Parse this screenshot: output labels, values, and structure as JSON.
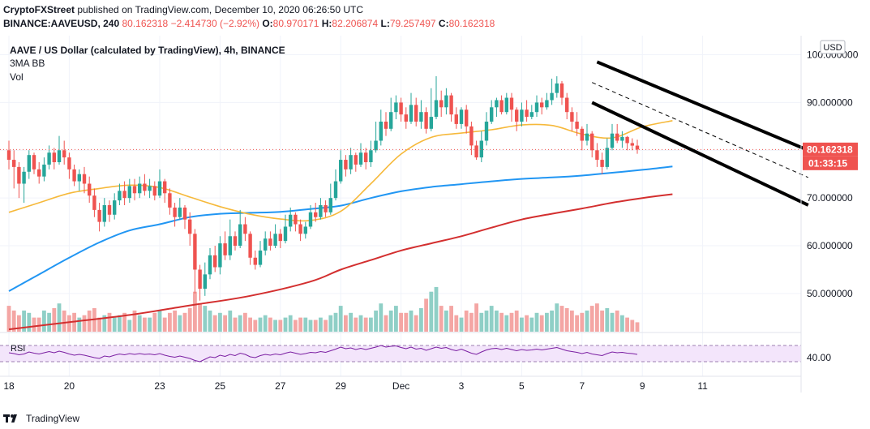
{
  "header": {
    "publisher": "CryptoFXStreet",
    "published_text": "published on TradingView.com, December 10, 2020 06:26:50 UTC",
    "symbol_line": "BINANCE:AAVEUSD, 240",
    "price": "80.162318",
    "change": "−2.414730 (−2.92%)",
    "open_label": "O:",
    "open": "80.970171",
    "high_label": "H:",
    "high": "82.206874",
    "low_label": "L:",
    "low": "79.257497",
    "close_label": "C:",
    "close": "80.162318"
  },
  "legend": {
    "title": "AAVE / US Dollar (calculated by TradingView), 4h, BINANCE",
    "indicator1": "3MA BB",
    "indicator2": "Vol"
  },
  "currency_button": "USD",
  "rsi_label": "RSI",
  "last_price_label": "80.162318",
  "countdown_label": "01:33:15",
  "footer": {
    "brand": "TradingView"
  },
  "colors": {
    "up": "#26a69a",
    "down": "#ef5350",
    "up_vol": "#8fcfc6",
    "down_vol": "#f4a6a4",
    "ma_yellow": "#f6b93b",
    "ma_blue": "#2196f3",
    "ma_red": "#d32f2f",
    "rsi_line": "#7b1fa2",
    "rsi_band": "#f3e5fb"
  },
  "chart_data": {
    "type": "candlestick",
    "title": "AAVE / US Dollar (calculated by TradingView), 4h, BINANCE",
    "ylim": [
      42,
      104
    ],
    "y_ticks": [
      "100.000000",
      "90.000000",
      "80.000000",
      "70.000000",
      "60.000000",
      "50.000000"
    ],
    "y_tick_values": [
      100,
      90,
      80,
      70,
      60,
      50
    ],
    "x_tick_labels": [
      "18",
      "20",
      "23",
      "25",
      "27",
      "29",
      "Dec",
      "3",
      "5",
      "7",
      "9",
      "11"
    ],
    "x_tick_index": [
      0,
      12,
      30,
      42,
      54,
      66,
      78,
      90,
      102,
      114,
      126,
      138
    ],
    "rsi_ticks": [
      "40.00"
    ],
    "rsi_tick_values": [
      40
    ],
    "rsi_band": [
      30,
      70
    ],
    "candles": [
      [
        80.0,
        78.0,
        82.0,
        76.0
      ],
      [
        78.0,
        76.5,
        80.0,
        72.0
      ],
      [
        76.5,
        73.0,
        77.5,
        70.0
      ],
      [
        73.0,
        75.5,
        76.5,
        69.0
      ],
      [
        75.5,
        79.0,
        80.0,
        74.0
      ],
      [
        79.0,
        76.0,
        79.5,
        75.0
      ],
      [
        76.0,
        74.5,
        77.5,
        73.0
      ],
      [
        74.5,
        77.0,
        78.5,
        73.5
      ],
      [
        77.0,
        79.5,
        81.0,
        76.0
      ],
      [
        79.5,
        77.5,
        80.5,
        76.0
      ],
      [
        77.5,
        80.0,
        83.0,
        77.0
      ],
      [
        80.0,
        78.5,
        82.0,
        77.0
      ],
      [
        78.5,
        76.0,
        79.5,
        74.0
      ],
      [
        76.0,
        73.5,
        77.0,
        72.5
      ],
      [
        73.5,
        75.0,
        76.0,
        71.5
      ],
      [
        75.0,
        73.0,
        76.5,
        71.0
      ],
      [
        73.0,
        70.5,
        74.5,
        69.0
      ],
      [
        70.5,
        67.5,
        72.0,
        66.0
      ],
      [
        67.5,
        65.0,
        69.0,
        63.0
      ],
      [
        65.0,
        68.5,
        70.0,
        64.0
      ],
      [
        68.5,
        66.5,
        69.5,
        65.0
      ],
      [
        66.5,
        69.5,
        71.0,
        65.5
      ],
      [
        69.5,
        71.5,
        73.0,
        68.5
      ],
      [
        71.5,
        70.0,
        73.5,
        68.5
      ],
      [
        70.0,
        72.5,
        74.0,
        69.0
      ],
      [
        72.5,
        71.0,
        74.0,
        69.5
      ],
      [
        71.0,
        73.0,
        74.5,
        70.0
      ],
      [
        73.0,
        71.5,
        75.0,
        70.5
      ],
      [
        71.5,
        72.5,
        74.0,
        70.0
      ],
      [
        72.5,
        70.5,
        73.5,
        69.5
      ],
      [
        70.5,
        73.5,
        76.0,
        70.0
      ],
      [
        73.5,
        71.0,
        74.0,
        69.0
      ],
      [
        71.0,
        68.0,
        72.0,
        66.5
      ],
      [
        68.0,
        66.0,
        69.0,
        64.0
      ],
      [
        66.0,
        68.0,
        70.0,
        65.5
      ],
      [
        68.0,
        65.5,
        68.5,
        63.5
      ],
      [
        65.5,
        62.5,
        67.0,
        60.0
      ],
      [
        62.5,
        55.0,
        63.5,
        50.0
      ],
      [
        55.0,
        51.0,
        56.0,
        48.5
      ],
      [
        51.0,
        54.0,
        56.5,
        49.5
      ],
      [
        54.0,
        58.0,
        59.5,
        53.0
      ],
      [
        58.0,
        55.5,
        60.0,
        54.5
      ],
      [
        55.5,
        60.5,
        62.0,
        54.0
      ],
      [
        60.5,
        58.0,
        63.0,
        57.0
      ],
      [
        58.0,
        62.0,
        65.5,
        57.0
      ],
      [
        62.0,
        60.0,
        63.0,
        59.0
      ],
      [
        60.0,
        64.5,
        67.5,
        59.5
      ],
      [
        64.5,
        62.5,
        66.0,
        61.0
      ],
      [
        62.5,
        57.5,
        63.0,
        56.0
      ],
      [
        57.5,
        56.0,
        59.0,
        55.0
      ],
      [
        56.0,
        59.0,
        61.0,
        55.5
      ],
      [
        59.0,
        61.5,
        63.0,
        58.0
      ],
      [
        61.5,
        60.0,
        63.0,
        59.0
      ],
      [
        60.0,
        62.5,
        64.5,
        59.5
      ],
      [
        62.5,
        61.0,
        63.5,
        59.5
      ],
      [
        61.0,
        64.0,
        66.5,
        60.5
      ],
      [
        64.0,
        66.5,
        68.0,
        63.0
      ],
      [
        66.5,
        64.5,
        67.0,
        63.0
      ],
      [
        64.5,
        62.5,
        65.5,
        61.0
      ],
      [
        62.5,
        64.0,
        65.0,
        61.5
      ],
      [
        64.0,
        67.0,
        68.5,
        63.5
      ],
      [
        67.0,
        66.0,
        69.0,
        65.0
      ],
      [
        66.0,
        68.5,
        70.0,
        65.5
      ],
      [
        68.5,
        67.0,
        69.5,
        66.0
      ],
      [
        67.0,
        70.0,
        73.0,
        66.5
      ],
      [
        70.0,
        73.5,
        76.0,
        69.5
      ],
      [
        73.5,
        78.0,
        80.0,
        73.0
      ],
      [
        78.0,
        76.0,
        79.0,
        74.5
      ],
      [
        76.0,
        79.0,
        80.5,
        75.0
      ],
      [
        79.0,
        77.0,
        79.5,
        75.5
      ],
      [
        77.0,
        79.5,
        81.5,
        76.5
      ],
      [
        79.5,
        77.5,
        80.5,
        76.0
      ],
      [
        77.5,
        80.0,
        82.0,
        76.5
      ],
      [
        80.0,
        82.0,
        86.0,
        79.5
      ],
      [
        82.0,
        86.0,
        88.5,
        81.0
      ],
      [
        86.0,
        84.5,
        88.0,
        83.0
      ],
      [
        84.5,
        88.0,
        91.0,
        84.0
      ],
      [
        88.0,
        90.0,
        91.5,
        86.5
      ],
      [
        90.0,
        87.5,
        91.0,
        86.0
      ],
      [
        87.5,
        86.0,
        89.0,
        84.5
      ],
      [
        86.0,
        89.5,
        92.0,
        85.5
      ],
      [
        89.5,
        86.0,
        91.0,
        85.0
      ],
      [
        86.0,
        88.0,
        90.5,
        84.5
      ],
      [
        88.0,
        84.5,
        89.0,
        83.5
      ],
      [
        84.5,
        87.0,
        93.0,
        84.0
      ],
      [
        87.0,
        90.5,
        95.5,
        86.5
      ],
      [
        90.5,
        89.0,
        92.5,
        87.0
      ],
      [
        89.0,
        91.5,
        93.0,
        87.5
      ],
      [
        91.5,
        87.5,
        92.0,
        86.0
      ],
      [
        87.5,
        85.5,
        89.0,
        84.5
      ],
      [
        85.5,
        88.5,
        89.0,
        84.5
      ],
      [
        88.5,
        85.0,
        89.5,
        83.5
      ],
      [
        85.0,
        81.0,
        86.0,
        79.0
      ],
      [
        81.0,
        78.5,
        82.0,
        78.0
      ],
      [
        78.5,
        82.0,
        84.0,
        77.5
      ],
      [
        82.0,
        86.0,
        88.0,
        81.0
      ],
      [
        86.0,
        89.0,
        90.5,
        85.5
      ],
      [
        89.0,
        90.5,
        91.0,
        87.0
      ],
      [
        90.5,
        88.0,
        91.5,
        87.5
      ],
      [
        88.0,
        91.0,
        92.0,
        87.5
      ],
      [
        91.0,
        88.5,
        92.0,
        86.0
      ],
      [
        88.5,
        86.0,
        89.0,
        84.0
      ],
      [
        86.0,
        88.5,
        90.0,
        85.0
      ],
      [
        88.5,
        87.0,
        90.5,
        86.0
      ],
      [
        87.0,
        88.0,
        89.5,
        86.5
      ],
      [
        88.0,
        90.0,
        91.5,
        87.0
      ],
      [
        90.0,
        89.0,
        91.0,
        87.5
      ],
      [
        89.0,
        90.5,
        92.0,
        88.5
      ],
      [
        90.5,
        92.0,
        95.0,
        89.5
      ],
      [
        92.0,
        94.0,
        95.5,
        91.0
      ],
      [
        94.0,
        91.0,
        94.5,
        89.5
      ],
      [
        91.0,
        88.0,
        92.0,
        86.5
      ],
      [
        88.0,
        86.0,
        89.0,
        84.0
      ],
      [
        86.0,
        84.5,
        88.0,
        83.0
      ],
      [
        84.5,
        82.0,
        85.0,
        80.0
      ],
      [
        82.0,
        83.5,
        85.5,
        81.0
      ],
      [
        83.5,
        80.0,
        84.0,
        78.5
      ],
      [
        80.0,
        78.0,
        81.5,
        76.5
      ],
      [
        78.0,
        76.5,
        79.5,
        75.0
      ],
      [
        76.5,
        80.5,
        82.5,
        76.0
      ],
      [
        80.5,
        83.5,
        85.5,
        80.0
      ],
      [
        83.5,
        82.0,
        85.5,
        81.5
      ],
      [
        82.0,
        82.8,
        84.0,
        80.5
      ],
      [
        82.8,
        81.5,
        83.0,
        80.0
      ],
      [
        81.5,
        80.97,
        82.5,
        80.0
      ],
      [
        80.97,
        80.16,
        82.21,
        79.26
      ]
    ],
    "volume": [
      0.55,
      0.45,
      0.35,
      0.45,
      0.4,
      0.3,
      0.3,
      0.45,
      0.4,
      0.5,
      0.6,
      0.45,
      0.35,
      0.4,
      0.3,
      0.35,
      0.45,
      0.5,
      0.3,
      0.35,
      0.4,
      0.3,
      0.35,
      0.4,
      0.25,
      0.45,
      0.35,
      0.3,
      0.3,
      0.4,
      0.45,
      0.3,
      0.4,
      0.45,
      0.35,
      0.4,
      0.5,
      0.85,
      0.6,
      0.55,
      0.45,
      0.35,
      0.4,
      0.35,
      0.45,
      0.3,
      0.35,
      0.4,
      0.3,
      0.25,
      0.3,
      0.35,
      0.3,
      0.25,
      0.25,
      0.3,
      0.35,
      0.25,
      0.3,
      0.3,
      0.25,
      0.25,
      0.3,
      0.25,
      0.35,
      0.4,
      0.55,
      0.35,
      0.4,
      0.3,
      0.35,
      0.3,
      0.3,
      0.45,
      0.6,
      0.35,
      0.45,
      0.55,
      0.4,
      0.4,
      0.45,
      0.35,
      0.5,
      0.7,
      0.85,
      0.95,
      0.55,
      0.45,
      0.55,
      0.35,
      0.3,
      0.45,
      0.4,
      0.6,
      0.4,
      0.45,
      0.55,
      0.45,
      0.4,
      0.35,
      0.4,
      0.45,
      0.3,
      0.35,
      0.3,
      0.4,
      0.35,
      0.4,
      0.45,
      0.6,
      0.55,
      0.5,
      0.45,
      0.35,
      0.4,
      0.45,
      0.55,
      0.6,
      0.45,
      0.5,
      0.4,
      0.45,
      0.35,
      0.3,
      0.25,
      0.2
    ],
    "rsi": [
      52,
      50,
      47,
      49,
      54,
      51,
      49,
      52,
      55,
      52,
      56,
      53,
      49,
      46,
      48,
      46,
      43,
      40,
      38,
      44,
      42,
      46,
      49,
      47,
      50,
      48,
      50,
      48,
      49,
      47,
      50,
      46,
      43,
      41,
      44,
      41,
      38,
      33,
      30,
      36,
      42,
      40,
      46,
      43,
      48,
      45,
      51,
      48,
      42,
      40,
      45,
      48,
      46,
      49,
      47,
      51,
      54,
      51,
      48,
      50,
      53,
      52,
      55,
      53,
      57,
      61,
      66,
      62,
      64,
      60,
      63,
      60,
      63,
      66,
      70,
      66,
      68,
      69,
      65,
      62,
      66,
      61,
      63,
      58,
      62,
      66,
      63,
      65,
      60,
      57,
      61,
      56,
      51,
      48,
      54,
      59,
      62,
      63,
      60,
      63,
      60,
      57,
      60,
      58,
      59,
      61,
      59,
      61,
      63,
      65,
      61,
      57,
      55,
      53,
      50,
      53,
      49,
      47,
      45,
      50,
      54,
      52,
      53,
      51,
      50,
      48
    ],
    "ma_yellow": [
      [
        0,
        67
      ],
      [
        6,
        69
      ],
      [
        12,
        71
      ],
      [
        18,
        72
      ],
      [
        24,
        72.7
      ],
      [
        30,
        72.2
      ],
      [
        36,
        70.2
      ],
      [
        42,
        68.2
      ],
      [
        48,
        66.6
      ],
      [
        54,
        65.6
      ],
      [
        60,
        65.3
      ],
      [
        66,
        67.2
      ],
      [
        72,
        73
      ],
      [
        78,
        79.2
      ],
      [
        84,
        82.7
      ],
      [
        90,
        83.6
      ],
      [
        96,
        84.3
      ],
      [
        102,
        85.3
      ],
      [
        108,
        85.2
      ],
      [
        114,
        83.4
      ],
      [
        120,
        82.6
      ],
      [
        126,
        84.9
      ],
      [
        132,
        86.2
      ]
    ],
    "ma_blue": [
      [
        0,
        50.5
      ],
      [
        6,
        54
      ],
      [
        12,
        57.5
      ],
      [
        18,
        60.7
      ],
      [
        24,
        63.2
      ],
      [
        30,
        64.5
      ],
      [
        36,
        66
      ],
      [
        42,
        66.7
      ],
      [
        48,
        66.9
      ],
      [
        54,
        67.1
      ],
      [
        60,
        67.7
      ],
      [
        66,
        68.4
      ],
      [
        72,
        70
      ],
      [
        78,
        71.4
      ],
      [
        84,
        72.3
      ],
      [
        90,
        72.9
      ],
      [
        96,
        73.5
      ],
      [
        102,
        74
      ],
      [
        108,
        74.3
      ],
      [
        114,
        74.7
      ],
      [
        120,
        75.3
      ],
      [
        126,
        75.9
      ],
      [
        132,
        76.6
      ]
    ],
    "ma_red": [
      [
        0,
        42.5
      ],
      [
        12,
        44
      ],
      [
        24,
        45.5
      ],
      [
        36,
        47.5
      ],
      [
        48,
        49.5
      ],
      [
        60,
        52.5
      ],
      [
        66,
        55
      ],
      [
        72,
        57
      ],
      [
        78,
        59
      ],
      [
        84,
        60.5
      ],
      [
        90,
        62
      ],
      [
        96,
        63.8
      ],
      [
        102,
        65.5
      ],
      [
        108,
        66.7
      ],
      [
        114,
        67.8
      ],
      [
        120,
        69
      ],
      [
        126,
        70
      ],
      [
        132,
        70.8
      ]
    ],
    "channel_upper": [
      [
        117,
        98.5
      ],
      [
        159,
        80
      ]
    ],
    "channel_lower": [
      [
        116,
        90
      ],
      [
        159,
        68.5
      ]
    ],
    "channel_mid": [
      [
        116,
        94.2
      ],
      [
        159,
        74.3
      ]
    ]
  }
}
